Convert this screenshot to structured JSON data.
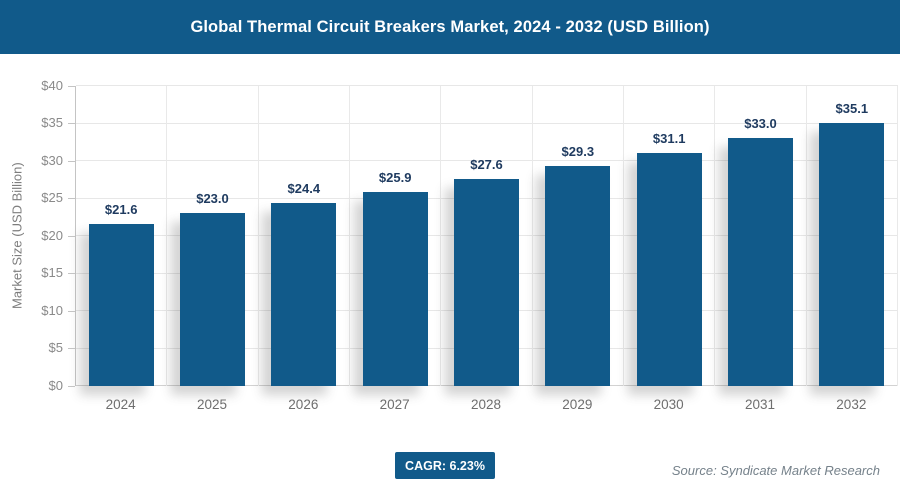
{
  "header": {
    "title": "Global Thermal Circuit Breakers Market, 2024 - 2032 (USD Billion)",
    "background_color": "#115A8A"
  },
  "chart_data": {
    "type": "bar",
    "title": "Global Thermal Circuit Breakers Market, 2024 - 2032 (USD Billion)",
    "categories": [
      "2024",
      "2025",
      "2026",
      "2027",
      "2028",
      "2029",
      "2030",
      "2031",
      "2032"
    ],
    "values": [
      21.6,
      23.0,
      24.4,
      25.9,
      27.6,
      29.3,
      31.1,
      33.0,
      35.1
    ],
    "value_labels": [
      "$21.6",
      "$23.0",
      "$24.4",
      "$25.9",
      "$27.6",
      "$29.3",
      "$31.1",
      "$33.0",
      "$35.1"
    ],
    "xlabel": "",
    "ylabel": "Market Size (USD Billion)",
    "ylim": [
      0,
      40
    ],
    "ytick_step": 5,
    "ytick_labels": [
      "$0",
      "$5",
      "$10",
      "$15",
      "$20",
      "$25",
      "$30",
      "$35",
      "$40"
    ],
    "grid": true,
    "legend": "none",
    "bar_color": "#115A8A",
    "value_label_color": "#1E3A5F"
  },
  "footer": {
    "cagr_label": "CAGR: 6.23%",
    "source": "Source: Syndicate Market Research"
  }
}
